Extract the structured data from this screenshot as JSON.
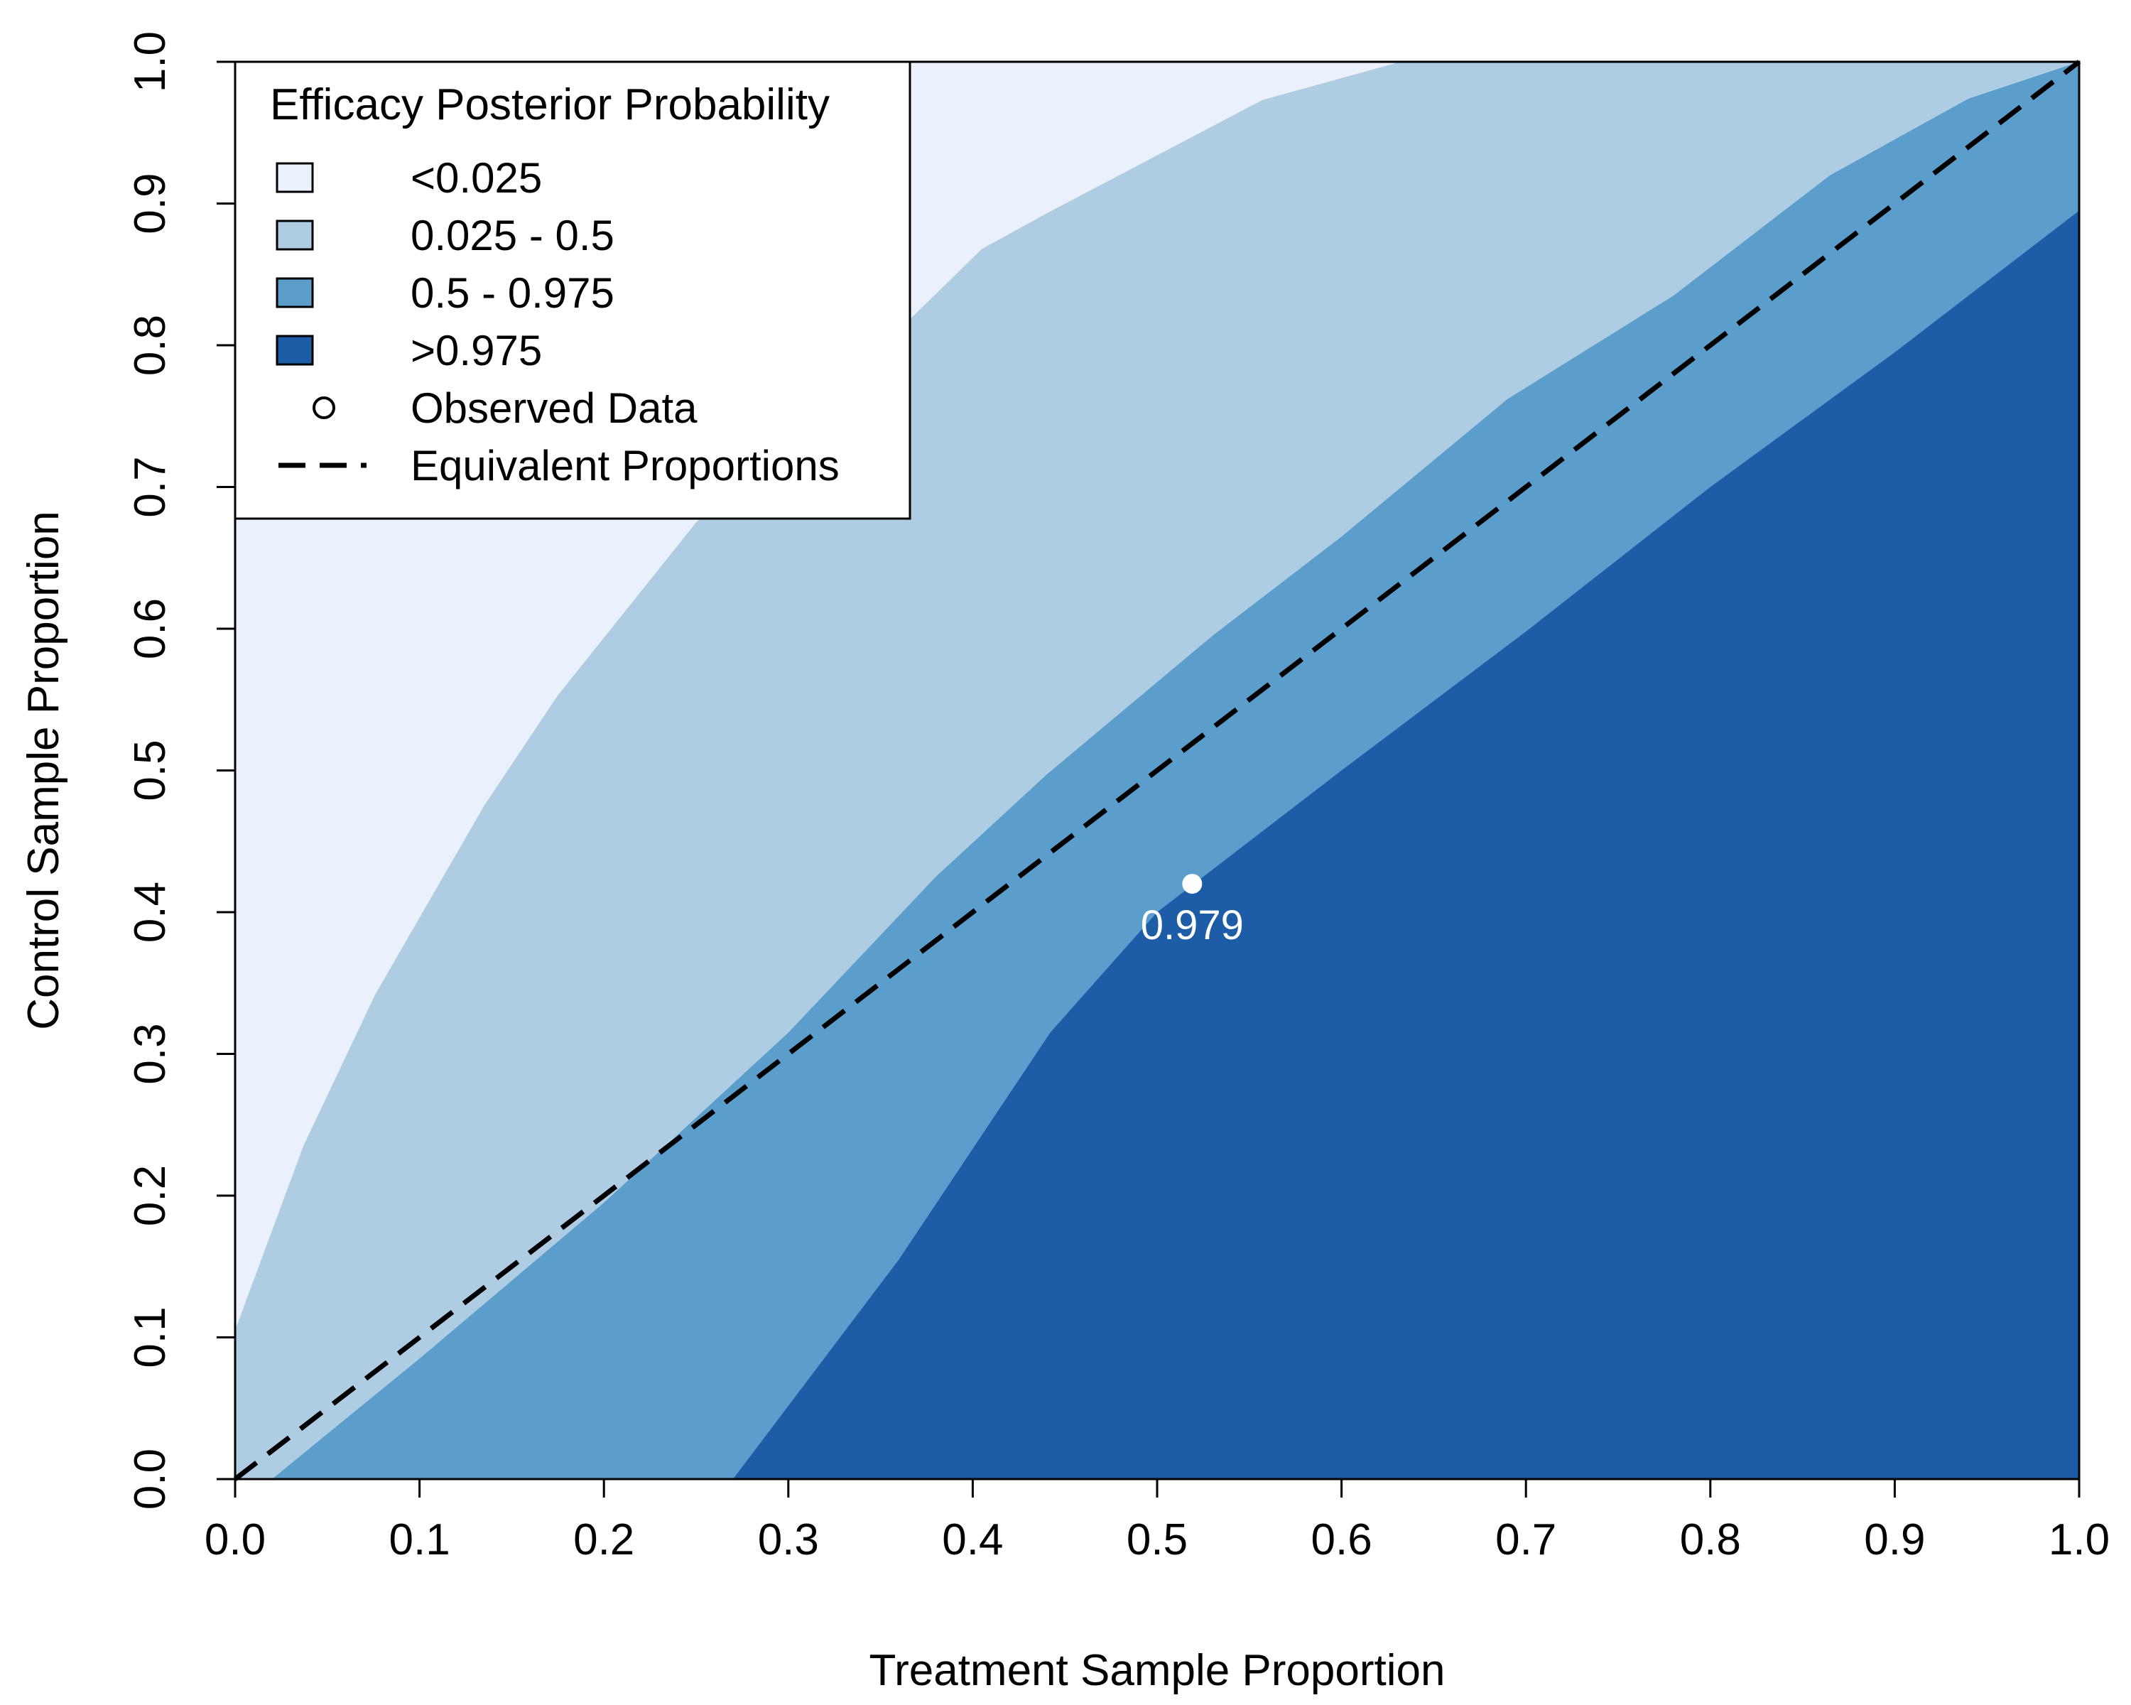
{
  "chart_data": {
    "type": "area",
    "xlabel": "Treatment Sample Proportion",
    "ylabel": "Control Sample Proportion",
    "xlim": [
      0,
      1
    ],
    "ylim": [
      0,
      1
    ],
    "x_ticks": [
      "0.0",
      "0.1",
      "0.2",
      "0.3",
      "0.4",
      "0.5",
      "0.6",
      "0.7",
      "0.8",
      "0.9",
      "1.0"
    ],
    "y_ticks": [
      "0.0",
      "0.1",
      "0.2",
      "0.3",
      "0.4",
      "0.5",
      "0.6",
      "0.7",
      "0.8",
      "0.9",
      "1.0"
    ],
    "grid": false,
    "legend": {
      "title": "Efficacy Posterior Probability",
      "placement": "top-left",
      "entries": [
        {
          "label": "<0.025",
          "kind": "fill",
          "color": "#EAF0FC"
        },
        {
          "label": "0.025 - 0.5",
          "kind": "fill",
          "color": "#AFCDE2"
        },
        {
          "label": "0.5 - 0.975",
          "kind": "fill",
          "color": "#5B9ECB"
        },
        {
          "label": ">0.975",
          "kind": "fill",
          "color": "#1D5CA6"
        },
        {
          "label": "Observed Data",
          "kind": "point",
          "color": "#000000"
        },
        {
          "label": "Equivalent Proportions",
          "kind": "dashed-line",
          "color": "#000000"
        }
      ]
    },
    "regions": [
      {
        "name": "<0.025",
        "color": "#EAF0FC"
      },
      {
        "name": "0.025 - 0.5",
        "color": "#AFCDE2",
        "upper_boundary": [
          [
            0,
            0.105
          ],
          [
            0.037,
            0.235
          ],
          [
            0.076,
            0.342
          ],
          [
            0.135,
            0.475
          ],
          [
            0.175,
            0.553
          ],
          [
            0.25,
            0.675
          ],
          [
            0.32,
            0.76
          ],
          [
            0.405,
            0.868
          ],
          [
            0.44,
            0.893
          ],
          [
            0.557,
            0.973
          ],
          [
            0.632,
            1.0
          ]
        ]
      },
      {
        "name": "0.5 - 0.975",
        "color": "#5B9ECB",
        "upper_boundary": [
          [
            0.02,
            0
          ],
          [
            0.1,
            0.085
          ],
          [
            0.2,
            0.195
          ],
          [
            0.3,
            0.315
          ],
          [
            0.38,
            0.425
          ],
          [
            0.44,
            0.497
          ],
          [
            0.53,
            0.595
          ],
          [
            0.6,
            0.665
          ],
          [
            0.69,
            0.762
          ],
          [
            0.78,
            0.835
          ],
          [
            0.865,
            0.92
          ],
          [
            0.94,
            0.974
          ],
          [
            1.0,
            1.0
          ]
        ]
      },
      {
        "name": ">0.975",
        "color": "#1D5CA6",
        "upper_boundary": [
          [
            0.27,
            0
          ],
          [
            0.36,
            0.155
          ],
          [
            0.442,
            0.315
          ],
          [
            0.5,
            0.4
          ],
          [
            0.6,
            0.5
          ],
          [
            0.7,
            0.598
          ],
          [
            0.8,
            0.7
          ],
          [
            0.9,
            0.795
          ],
          [
            1.0,
            0.895
          ]
        ]
      }
    ],
    "reference_line": {
      "name": "Equivalent Proportions",
      "from": [
        0,
        0
      ],
      "to": [
        1,
        1
      ]
    },
    "observed_point": {
      "x": 0.519,
      "y": 0.42,
      "label": "0.979"
    }
  }
}
